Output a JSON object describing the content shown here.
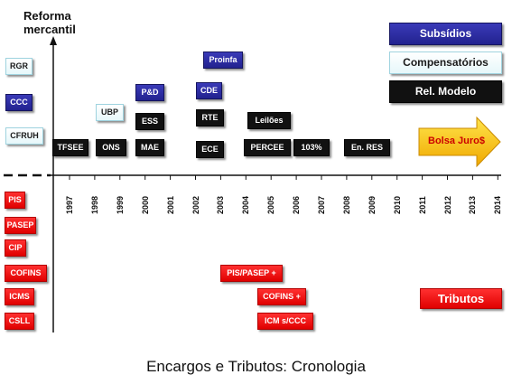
{
  "header": {
    "title_line1": "Reforma",
    "title_line2": "mercantil"
  },
  "legend": {
    "subsidios": "Subsídios",
    "compensatorios": "Compensatórios",
    "rel_modelo": "Rel. Modelo"
  },
  "left_boxes": {
    "rgr": "RGR",
    "ccc": "CCC",
    "cfruh": "CFRUH"
  },
  "items": {
    "tfsee": "TFSEE",
    "ubp": "UBP",
    "ons": "ONS",
    "pd": "P&D",
    "ess": "ESS",
    "mae": "MAE",
    "proinfa": "Proinfa",
    "cde": "CDE",
    "rte": "RTE",
    "ece": "ECE",
    "leiloes": "Leilões",
    "percee": "PERCEE",
    "pct103": "103%",
    "en_res": "En. RES"
  },
  "arrow": {
    "label": "Bolsa Juro$"
  },
  "years": [
    "1997",
    "1998",
    "1999",
    "2000",
    "2001",
    "2002",
    "2003",
    "2004",
    "2005",
    "2006",
    "2007",
    "2008",
    "2009",
    "2010",
    "2011",
    "2012",
    "2013",
    "2014"
  ],
  "tributos": {
    "pis": "PIS",
    "pasep": "PASEP",
    "cip": "CIP",
    "cofins": "COFINS",
    "icms": "ICMS",
    "csll": "CSLL",
    "pis_pasep_plus": "PIS/PASEP +",
    "cofins_plus": "COFINS +",
    "icm_sccc": "ICM s/CCC",
    "label": "Tributos"
  },
  "caption": "Encargos e Tributos: Cronologia"
}
